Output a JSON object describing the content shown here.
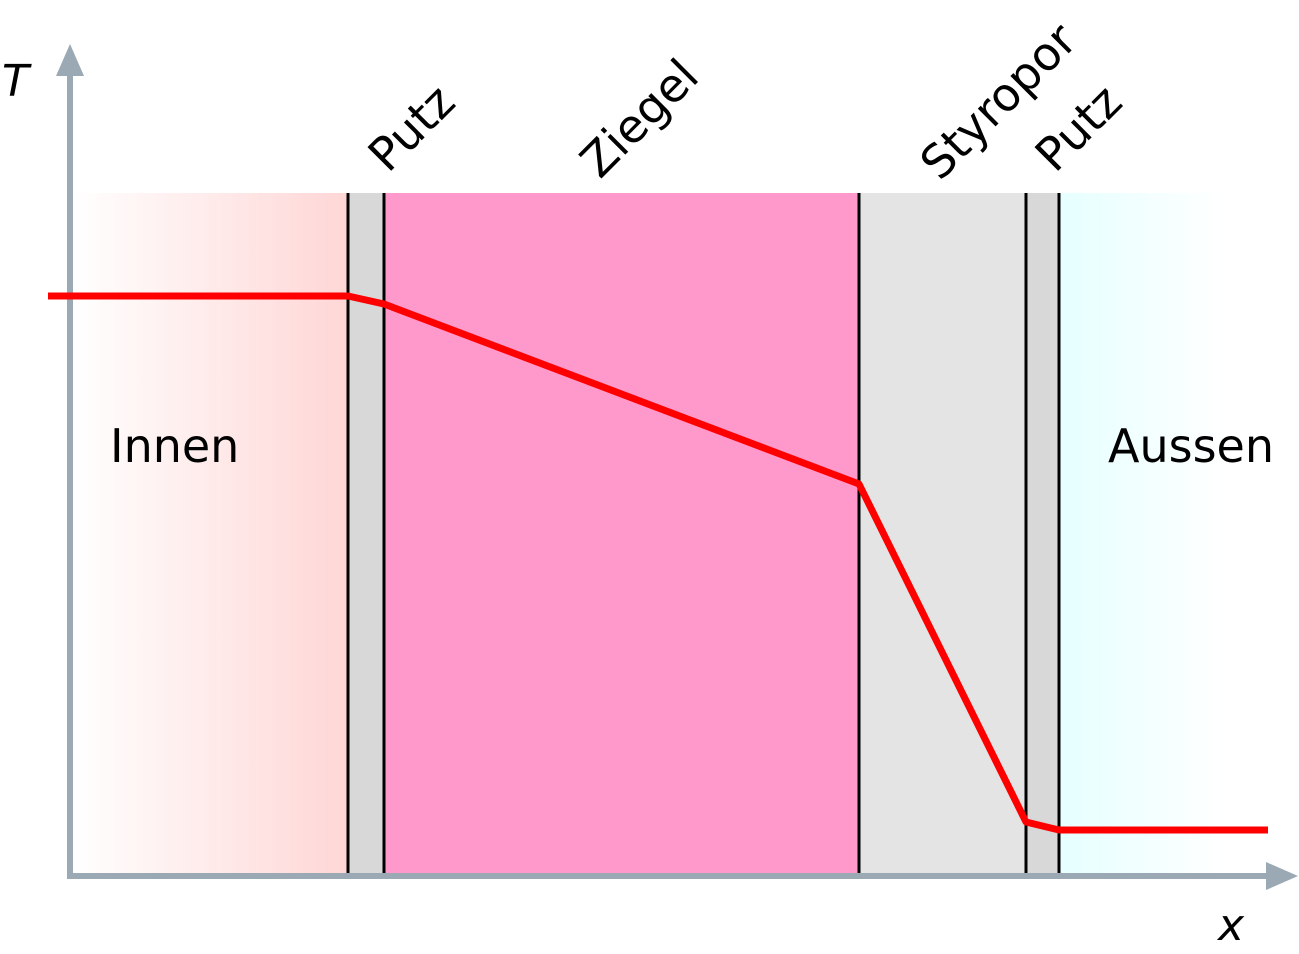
{
  "axes": {
    "y_label": "T",
    "x_label": "x",
    "color": "#9aa9b3"
  },
  "regions": {
    "inside_label": "Innen",
    "outside_label": "Aussen",
    "inside_color": "#ffd6d6",
    "outside_color": "#e6ffff"
  },
  "layers": [
    {
      "name": "Putz",
      "color": "#d8d8d8"
    },
    {
      "name": "Ziegel",
      "color": "#ff99cc"
    },
    {
      "name": "Styropor",
      "color": "#e4e4e4"
    },
    {
      "name": "Putz",
      "color": "#d8d8d8"
    }
  ],
  "temperature_curve": {
    "color": "#ff0000"
  }
}
